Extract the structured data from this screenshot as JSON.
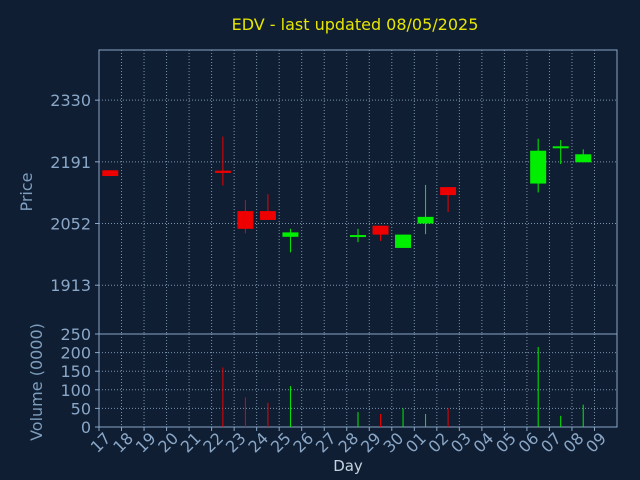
{
  "chart_data": {
    "type": "candlestick",
    "title": "EDV - last updated 08/05/2025",
    "xlabel": "Day",
    "price_panel": {
      "ylabel": "Price",
      "yticks": [
        1913,
        2052,
        2191,
        2330
      ],
      "ylim": [
        1803,
        2443
      ]
    },
    "volume_panel": {
      "ylabel": "Volume (0000)",
      "yticks": [
        0,
        50,
        100,
        150,
        200,
        250
      ],
      "ylim": [
        0,
        250
      ]
    },
    "categories": [
      "17",
      "18",
      "19",
      "20",
      "21",
      "22",
      "23",
      "24",
      "25",
      "26",
      "27",
      "28",
      "29",
      "30",
      "01",
      "02",
      "03",
      "04",
      "05",
      "06",
      "07",
      "08",
      "09"
    ],
    "candles": [
      {
        "day": "17",
        "open": 2172,
        "close": 2159,
        "high": 2172,
        "low": 2159,
        "volume": 0
      },
      {
        "day": "22",
        "open": 2171,
        "close": 2166,
        "high": 2248,
        "low": 2138,
        "volume": 160
      },
      {
        "day": "23",
        "open": 2080,
        "close": 2040,
        "high": 2105,
        "low": 2030,
        "volume": 80
      },
      {
        "day": "24",
        "open": 2080,
        "close": 2060,
        "high": 2118,
        "low": 2060,
        "volume": 65
      },
      {
        "day": "25",
        "open": 2022,
        "close": 2032,
        "high": 2040,
        "low": 1987,
        "volume": 110
      },
      {
        "day": "28",
        "open": 2023,
        "close": 2026,
        "high": 2040,
        "low": 2010,
        "volume": 40
      },
      {
        "day": "29",
        "open": 2047,
        "close": 2027,
        "high": 2047,
        "low": 2013,
        "volume": 35
      },
      {
        "day": "30",
        "open": 1997,
        "close": 2027,
        "high": 2027,
        "low": 1997,
        "volume": 50
      },
      {
        "day": "01",
        "open": 2052,
        "close": 2067,
        "high": 2139,
        "low": 2028,
        "volume": 35
      },
      {
        "day": "02",
        "open": 2134,
        "close": 2116,
        "high": 2134,
        "low": 2078,
        "volume": 50
      },
      {
        "day": "06",
        "open": 2142,
        "close": 2216,
        "high": 2243,
        "low": 2122,
        "volume": 215
      },
      {
        "day": "07",
        "open": 2223,
        "close": 2226,
        "high": 2240,
        "low": 2186,
        "volume": 30
      },
      {
        "day": "08",
        "open": 2190,
        "close": 2208,
        "high": 2219,
        "low": 2190,
        "volume": 60
      }
    ],
    "grid": true,
    "colors": {
      "background": "#0f1e32",
      "up": "#00ee00",
      "down": "#ee0000",
      "grid": "#7a93ad",
      "frame": "#8aa7c7",
      "title": "#e6e600"
    }
  }
}
